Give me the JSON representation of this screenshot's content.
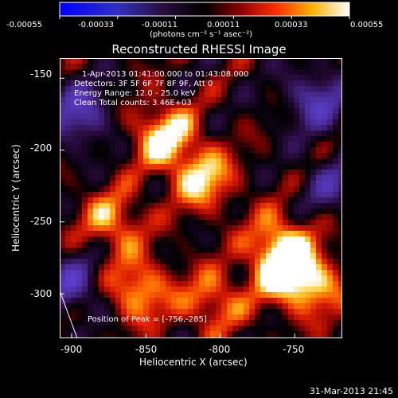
{
  "colorbar": {
    "ticks": [
      "-0.00055",
      "-0.00033",
      "-0.00011",
      "0.00011",
      "0.00033",
      "0.00055"
    ],
    "units_text": "(photons cm⁻² s⁻¹ asec⁻²)"
  },
  "title": "Reconstructed RHESSI Image",
  "info": {
    "time_range": "1-Apr-2013 01:41:00.000 to 01:43:08.000",
    "detectors": "Detectors: 3F 5F 6F 7F 8F 9F, Att 0",
    "energy": "Energy Range: 12.0 - 25.0 keV",
    "clean": "Clean    Total counts: 3.46E+03"
  },
  "peak_text": "Position of Peak = [-756,-285]",
  "chart_data": {
    "type": "heatmap",
    "title": "Reconstructed RHESSI Image",
    "xlabel": "Heliocentric X (arcsec)",
    "ylabel": "Heliocentric Y (arcsec)",
    "xlim": [
      -908,
      -718
    ],
    "ylim": [
      -331,
      -136
    ],
    "x_ticks": [
      -900,
      -850,
      -800,
      -750
    ],
    "y_ticks": [
      -150,
      -200,
      -250,
      -300
    ],
    "colorbar_range": [
      -0.00055,
      0.00055
    ],
    "colorbar_ticks": [
      -0.00055,
      -0.00033,
      -0.00011,
      0.00011,
      0.00033,
      0.00055
    ],
    "colorbar_units": "(photons cm⁻² s⁻¹ asec⁻²)",
    "colormap": "blue-purple-black-red-orange-yellow-white",
    "peak_position": [
      -756,
      -285
    ],
    "bright_sources": [
      {
        "x": -838,
        "y": -190,
        "intensity": 1.0
      },
      {
        "x": -812,
        "y": -220,
        "intensity": 0.9
      },
      {
        "x": -760,
        "y": -265,
        "intensity": 0.8
      },
      {
        "x": -756,
        "y": -285,
        "intensity": 1.0
      },
      {
        "x": -872,
        "y": -250,
        "intensity": 0.75
      },
      {
        "x": -855,
        "y": -298,
        "intensity": 0.85
      },
      {
        "x": -805,
        "y": -305,
        "intensity": 0.7
      },
      {
        "x": -735,
        "y": -295,
        "intensity": 0.65
      }
    ],
    "negative_regions": [
      {
        "x": -895,
        "y": -175,
        "intensity": -0.8
      },
      {
        "x": -900,
        "y": -295,
        "intensity": -0.7
      },
      {
        "x": -735,
        "y": -165,
        "intensity": -0.75
      },
      {
        "x": -725,
        "y": -225,
        "intensity": -0.5
      }
    ]
  },
  "x_tick_labels": [
    "-900",
    "-850",
    "-800",
    "-750"
  ],
  "y_tick_labels": [
    "-150",
    "-200",
    "-250",
    "-300"
  ],
  "xlabel": "Heliocentric X (arcsec)",
  "ylabel": "Heliocentric Y (arcsec)",
  "timestamp": "31-Mar-2013 21:45"
}
